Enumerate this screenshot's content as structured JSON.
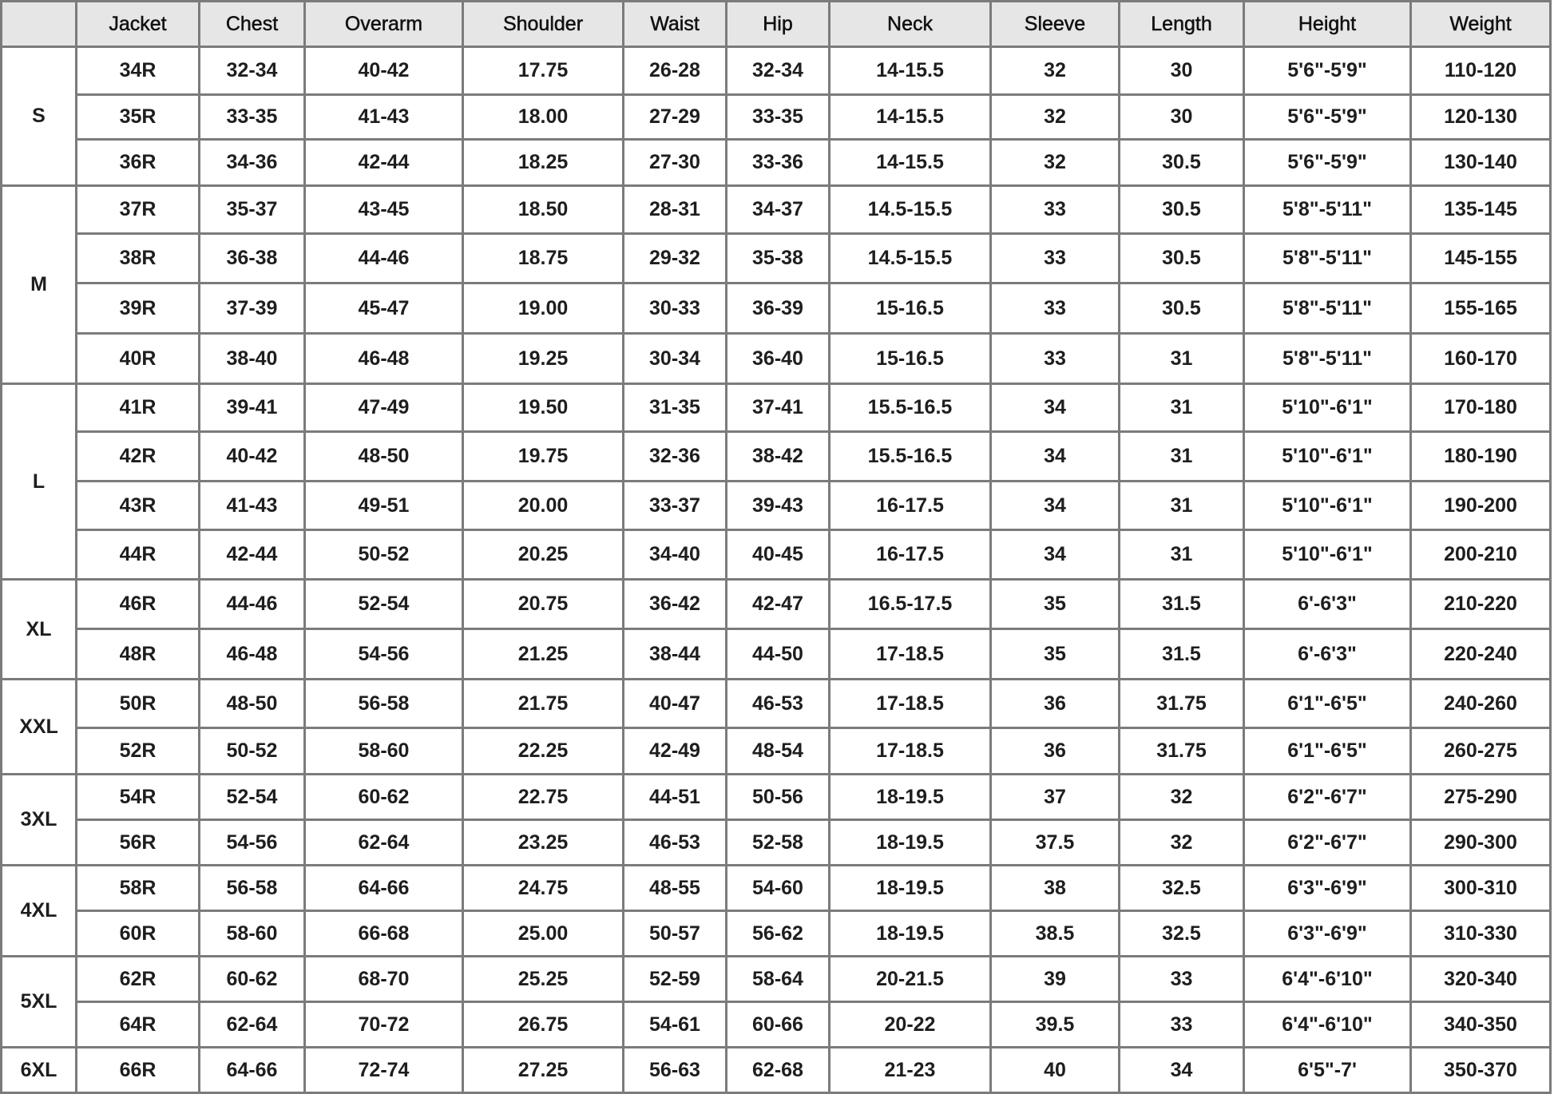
{
  "headers": [
    "",
    "Jacket",
    "Chest",
    "Overarm",
    "Shoulder",
    "Waist",
    "Hip",
    "Neck",
    "Sleeve",
    "Length",
    "Height",
    "Weight"
  ],
  "groups": [
    {
      "size": "S",
      "rows": [
        [
          "34R",
          "32-34",
          "40-42",
          "17.75",
          "26-28",
          "32-34",
          "14-15.5",
          "32",
          "30",
          "5'6\"-5'9\"",
          "110-120"
        ],
        [
          "35R",
          "33-35",
          "41-43",
          "18.00",
          "27-29",
          "33-35",
          "14-15.5",
          "32",
          "30",
          "5'6\"-5'9\"",
          "120-130"
        ],
        [
          "36R",
          "34-36",
          "42-44",
          "18.25",
          "27-30",
          "33-36",
          "14-15.5",
          "32",
          "30.5",
          "5'6\"-5'9\"",
          "130-140"
        ]
      ]
    },
    {
      "size": "M",
      "rows": [
        [
          "37R",
          "35-37",
          "43-45",
          "18.50",
          "28-31",
          "34-37",
          "14.5-15.5",
          "33",
          "30.5",
          "5'8\"-5'11\"",
          "135-145"
        ],
        [
          "38R",
          "36-38",
          "44-46",
          "18.75",
          "29-32",
          "35-38",
          "14.5-15.5",
          "33",
          "30.5",
          "5'8\"-5'11\"",
          "145-155"
        ],
        [
          "39R",
          "37-39",
          "45-47",
          "19.00",
          "30-33",
          "36-39",
          "15-16.5",
          "33",
          "30.5",
          "5'8\"-5'11\"",
          "155-165"
        ],
        [
          "40R",
          "38-40",
          "46-48",
          "19.25",
          "30-34",
          "36-40",
          "15-16.5",
          "33",
          "31",
          "5'8\"-5'11\"",
          "160-170"
        ]
      ]
    },
    {
      "size": "L",
      "rows": [
        [
          "41R",
          "39-41",
          "47-49",
          "19.50",
          "31-35",
          "37-41",
          "15.5-16.5",
          "34",
          "31",
          "5'10\"-6'1\"",
          "170-180"
        ],
        [
          "42R",
          "40-42",
          "48-50",
          "19.75",
          "32-36",
          "38-42",
          "15.5-16.5",
          "34",
          "31",
          "5'10\"-6'1\"",
          "180-190"
        ],
        [
          "43R",
          "41-43",
          "49-51",
          "20.00",
          "33-37",
          "39-43",
          "16-17.5",
          "34",
          "31",
          "5'10\"-6'1\"",
          "190-200"
        ],
        [
          "44R",
          "42-44",
          "50-52",
          "20.25",
          "34-40",
          "40-45",
          "16-17.5",
          "34",
          "31",
          "5'10\"-6'1\"",
          "200-210"
        ]
      ]
    },
    {
      "size": "XL",
      "rows": [
        [
          "46R",
          "44-46",
          "52-54",
          "20.75",
          "36-42",
          "42-47",
          "16.5-17.5",
          "35",
          "31.5",
          "6'-6'3\"",
          "210-220"
        ],
        [
          "48R",
          "46-48",
          "54-56",
          "21.25",
          "38-44",
          "44-50",
          "17-18.5",
          "35",
          "31.5",
          "6'-6'3\"",
          "220-240"
        ]
      ]
    },
    {
      "size": "XXL",
      "rows": [
        [
          "50R",
          "48-50",
          "56-58",
          "21.75",
          "40-47",
          "46-53",
          "17-18.5",
          "36",
          "31.75",
          "6'1\"-6'5\"",
          "240-260"
        ],
        [
          "52R",
          "50-52",
          "58-60",
          "22.25",
          "42-49",
          "48-54",
          "17-18.5",
          "36",
          "31.75",
          "6'1\"-6'5\"",
          "260-275"
        ]
      ]
    },
    {
      "size": "3XL",
      "rows": [
        [
          "54R",
          "52-54",
          "60-62",
          "22.75",
          "44-51",
          "50-56",
          "18-19.5",
          "37",
          "32",
          "6'2\"-6'7\"",
          "275-290"
        ],
        [
          "56R",
          "54-56",
          "62-64",
          "23.25",
          "46-53",
          "52-58",
          "18-19.5",
          "37.5",
          "32",
          "6'2\"-6'7\"",
          "290-300"
        ]
      ]
    },
    {
      "size": "4XL",
      "rows": [
        [
          "58R",
          "56-58",
          "64-66",
          "24.75",
          "48-55",
          "54-60",
          "18-19.5",
          "38",
          "32.5",
          "6'3\"-6'9\"",
          "300-310"
        ],
        [
          "60R",
          "58-60",
          "66-68",
          "25.00",
          "50-57",
          "56-62",
          "18-19.5",
          "38.5",
          "32.5",
          "6'3\"-6'9\"",
          "310-330"
        ]
      ]
    },
    {
      "size": "5XL",
      "rows": [
        [
          "62R",
          "60-62",
          "68-70",
          "25.25",
          "52-59",
          "58-64",
          "20-21.5",
          "39",
          "33",
          "6'4\"-6'10\"",
          "320-340"
        ],
        [
          "64R",
          "62-64",
          "70-72",
          "26.75",
          "54-61",
          "60-66",
          "20-22",
          "39.5",
          "33",
          "6'4\"-6'10\"",
          "340-350"
        ]
      ]
    },
    {
      "size": "6XL",
      "rows": [
        [
          "66R",
          "64-66",
          "72-74",
          "27.25",
          "56-63",
          "62-68",
          "21-23",
          "40",
          "34",
          "6'5\"-7'",
          "350-370"
        ]
      ]
    }
  ]
}
